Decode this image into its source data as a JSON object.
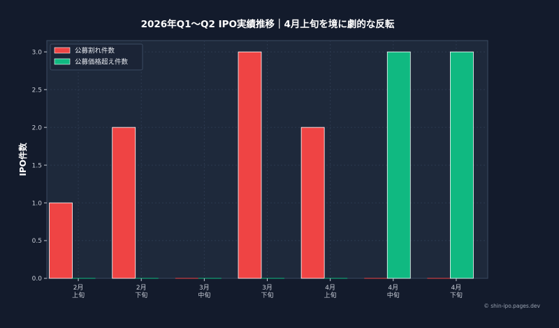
{
  "chart_data": {
    "type": "bar",
    "title": "2026年Q1〜Q2 IPO実績推移｜4月上旬を境に劇的な反転",
    "xlabel": "",
    "ylabel": "IPO件数",
    "ylim": [
      0,
      3.15
    ],
    "yticks": [
      0.0,
      0.5,
      1.0,
      1.5,
      2.0,
      2.5,
      3.0
    ],
    "ytick_labels": [
      "0.0",
      "0.5",
      "1.0",
      "1.5",
      "2.0",
      "2.5",
      "3.0"
    ],
    "categories": [
      [
        "2月",
        "上旬"
      ],
      [
        "2月",
        "下旬"
      ],
      [
        "3月",
        "中旬"
      ],
      [
        "3月",
        "下旬"
      ],
      [
        "4月",
        "上旬"
      ],
      [
        "4月",
        "中旬"
      ],
      [
        "4月",
        "下旬"
      ]
    ],
    "series": [
      {
        "name": "公募割れ件数",
        "color": "#ef4444",
        "values": [
          1,
          2,
          0,
          3,
          2,
          0,
          0
        ]
      },
      {
        "name": "公募価格超え件数",
        "color": "#10b981",
        "values": [
          0,
          0,
          0,
          0,
          0,
          3,
          3
        ]
      }
    ],
    "grid": true,
    "legend": "top-left"
  },
  "credit": "© shin-ipo.pages.dev",
  "colors": {
    "background": "#131b2c",
    "plot_background": "#1e293b",
    "axis": "#3b4a61",
    "grid": "#2c3a50"
  }
}
